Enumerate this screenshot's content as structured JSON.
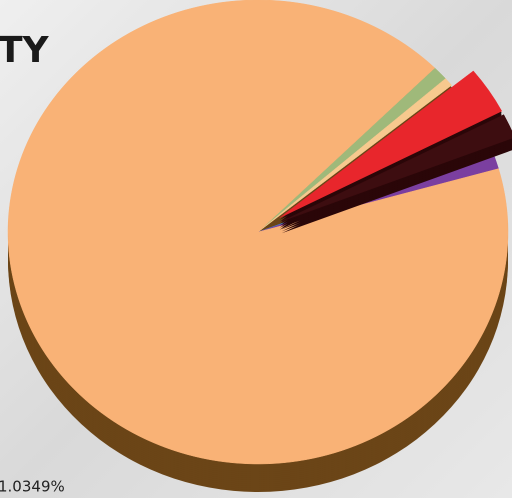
{
  "chart_data": {
    "type": "pie",
    "title": "TY",
    "categories": [
      null,
      null,
      null,
      null,
      null,
      null,
      null
    ],
    "values": [
      1.0,
      0.6,
      3.3,
      1.7,
      0.5,
      1.0,
      91.9
    ],
    "colors": [
      "#9fb97a",
      "#f7c98e",
      "#e8262c",
      "#3d0d10",
      "#3f86c8",
      "#7b3fa0",
      "#f9b276"
    ],
    "explode": [
      false,
      false,
      true,
      true,
      false,
      false,
      false
    ],
    "annotations": [
      "1.0349%"
    ]
  }
}
